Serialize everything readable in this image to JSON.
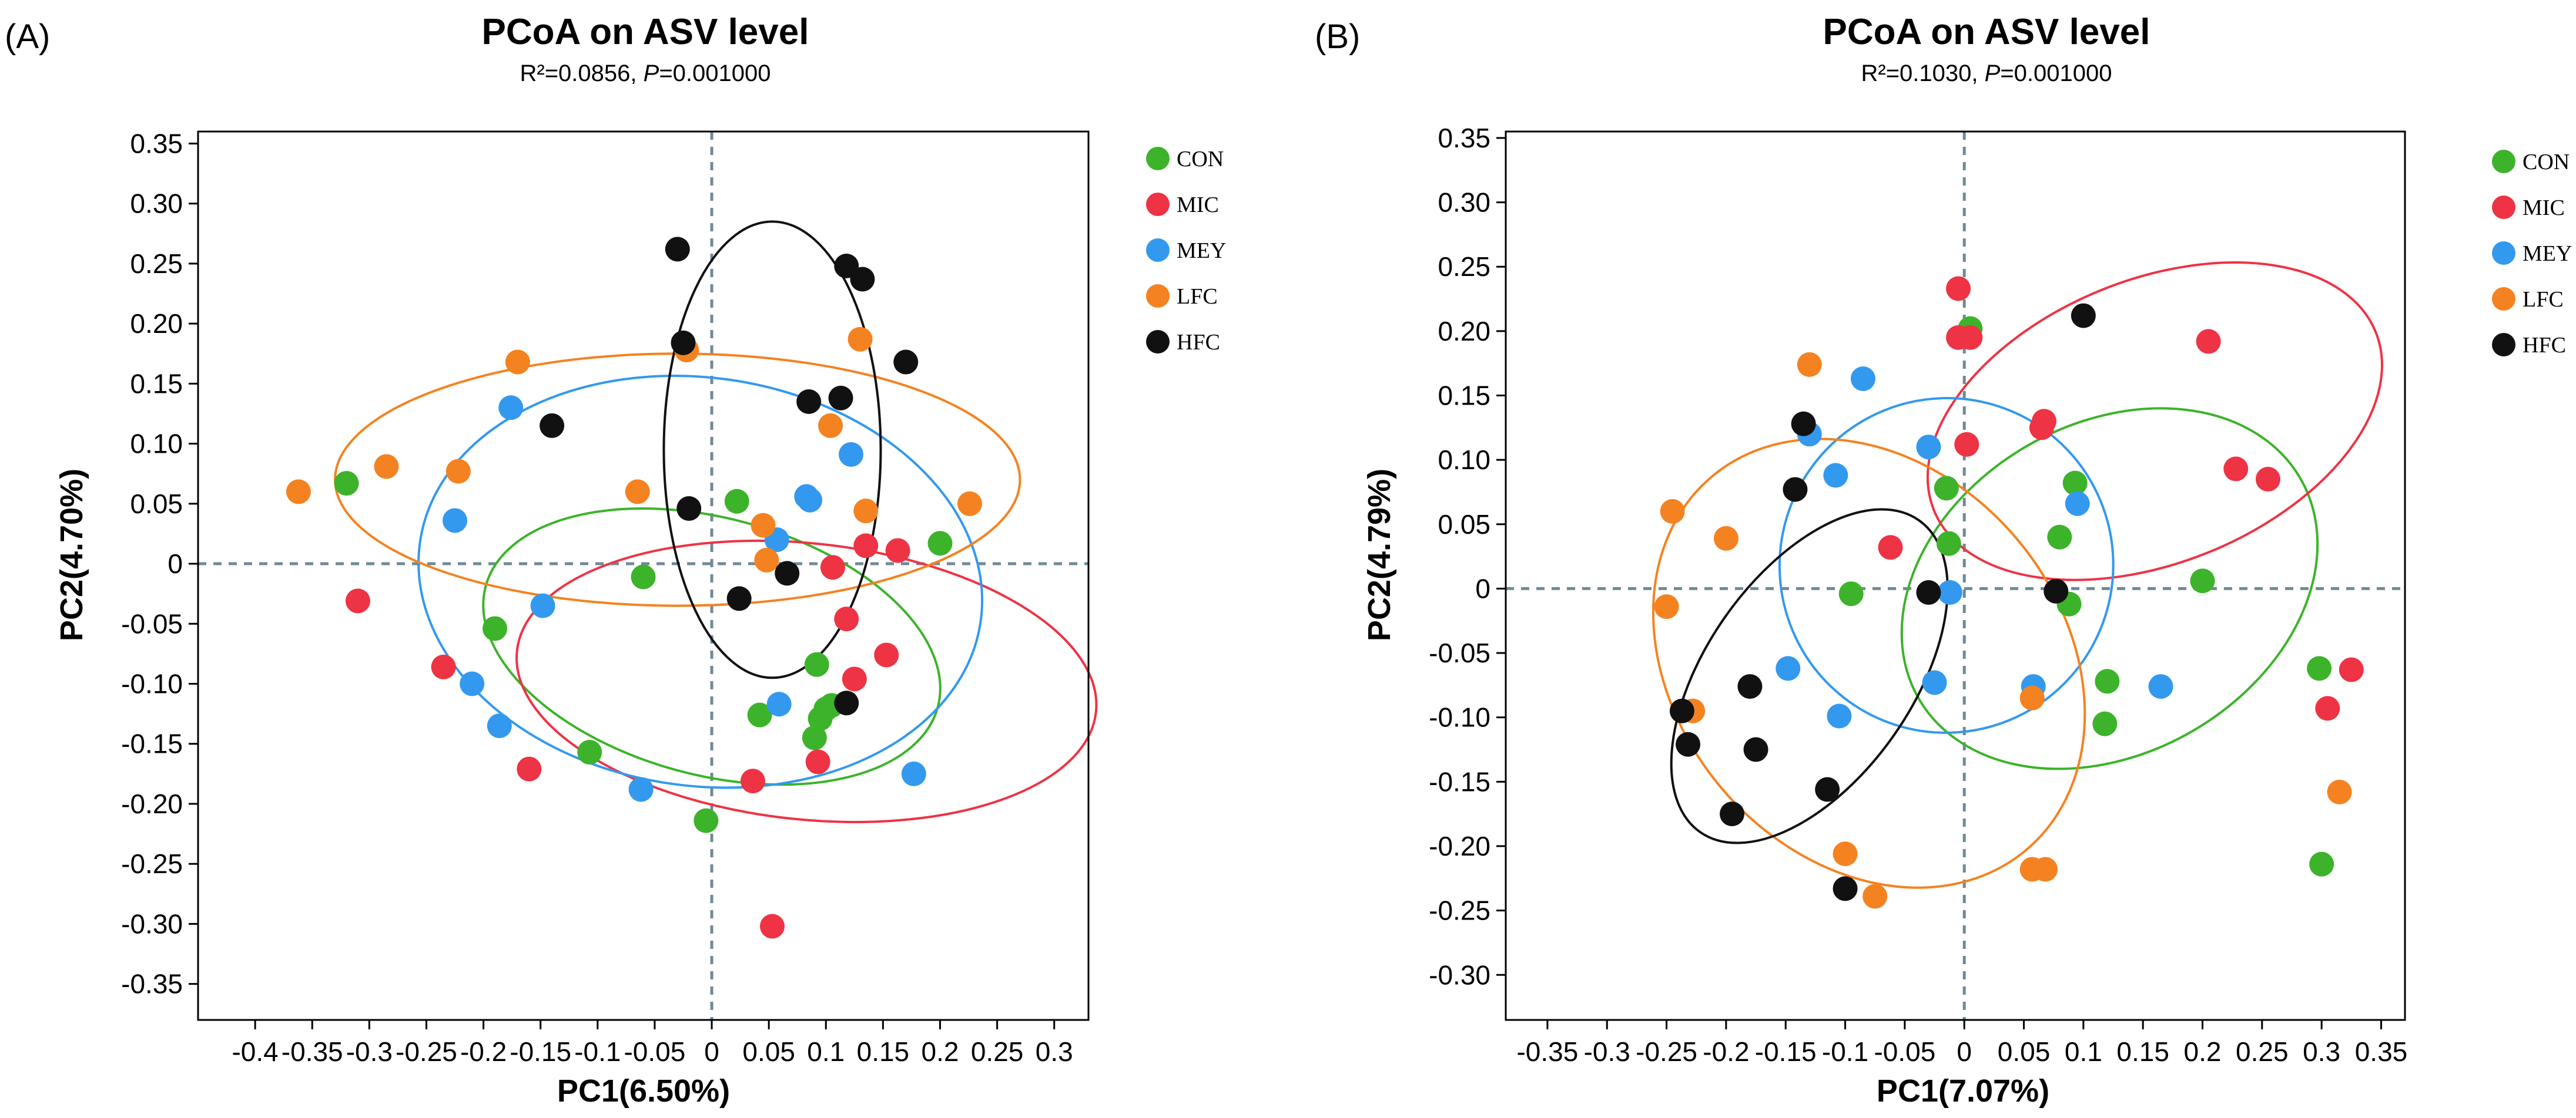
{
  "chart_data": [
    {
      "panel": "(A)",
      "type": "scatter",
      "title": "PCoA on ASV level",
      "subtitle_prefix": "R²=0.0856, ",
      "subtitle_p": "P",
      "subtitle_suffix": "=0.001000",
      "xlabel": "PC1(6.50%)",
      "ylabel": "PC2(4.70%)",
      "xlim": [
        -0.45,
        0.33
      ],
      "ylim": [
        -0.38,
        0.36
      ],
      "x_ticks": [
        -0.4,
        -0.35,
        -0.3,
        -0.25,
        -0.2,
        -0.15,
        -0.1,
        -0.05,
        0,
        0.05,
        0.1,
        0.15,
        0.2,
        0.25,
        0.3
      ],
      "x_tick_labels": [
        "-0.4",
        "-0.35",
        "-0.3",
        "-0.25",
        "-0.2",
        "-0.15",
        "-0.1",
        "-0.05",
        "0",
        "0.05",
        "0.1",
        "0.15",
        "0.2",
        "0.25",
        "0.3"
      ],
      "y_ticks": [
        0.35,
        0.3,
        0.25,
        0.2,
        0.15,
        0.1,
        0.05,
        0,
        -0.05,
        -0.1,
        -0.15,
        -0.2,
        -0.25,
        -0.3,
        -0.35
      ],
      "y_tick_labels": [
        "0.35",
        "0.30",
        "0.25",
        "0.20",
        "0.15",
        "0.10",
        "0.05",
        "0",
        "-0.05",
        "-0.10",
        "-0.15",
        "-0.20",
        "-0.25",
        "-0.30",
        "-0.35"
      ],
      "legend": [
        "CON",
        "MIC",
        "MEY",
        "LFC",
        "HFC"
      ],
      "series": [
        {
          "name": "CON",
          "color": "#3cb32a",
          "points": [
            [
              -0.32,
              0.067
            ],
            [
              -0.19,
              -0.054
            ],
            [
              -0.107,
              -0.157
            ],
            [
              -0.06,
              -0.011
            ],
            [
              -0.005,
              -0.214
            ],
            [
              0.022,
              0.052
            ],
            [
              0.042,
              -0.126
            ],
            [
              0.092,
              -0.084
            ],
            [
              0.095,
              -0.129
            ],
            [
              0.1,
              -0.121
            ],
            [
              0.105,
              -0.118
            ],
            [
              0.2,
              0.017
            ],
            [
              0.09,
              -0.145
            ]
          ],
          "ellipse": {
            "cx": 0.0,
            "cy": -0.069,
            "rx": 0.205,
            "ry": 0.107,
            "angle_deg": -15
          }
        },
        {
          "name": "MIC",
          "color": "#ee3344",
          "points": [
            [
              -0.31,
              -0.031
            ],
            [
              -0.235,
              -0.086
            ],
            [
              -0.16,
              -0.171
            ],
            [
              0.036,
              -0.181
            ],
            [
              0.053,
              -0.302
            ],
            [
              0.093,
              -0.165
            ],
            [
              0.106,
              -0.003
            ],
            [
              0.118,
              -0.046
            ],
            [
              0.125,
              -0.096
            ],
            [
              0.135,
              0.015
            ],
            [
              0.153,
              -0.076
            ],
            [
              0.163,
              0.011
            ]
          ],
          "ellipse": {
            "cx": 0.083,
            "cy": -0.098,
            "rx": 0.255,
            "ry": 0.115,
            "angle_deg": -6
          }
        },
        {
          "name": "MEY",
          "color": "#3399ee",
          "points": [
            [
              -0.225,
              0.036
            ],
            [
              -0.21,
              -0.1
            ],
            [
              -0.186,
              -0.135
            ],
            [
              -0.176,
              0.13
            ],
            [
              -0.148,
              -0.035
            ],
            [
              -0.062,
              -0.188
            ],
            [
              0.057,
              0.02
            ],
            [
              0.059,
              -0.117
            ],
            [
              0.083,
              0.056
            ],
            [
              0.086,
              0.053
            ],
            [
              0.122,
              0.091
            ],
            [
              0.177,
              -0.175
            ]
          ],
          "ellipse": {
            "cx": -0.01,
            "cy": -0.015,
            "rx": 0.248,
            "ry": 0.17,
            "angle_deg": -8
          }
        },
        {
          "name": "LFC",
          "color": "#f58220",
          "points": [
            [
              -0.362,
              0.06
            ],
            [
              -0.285,
              0.081
            ],
            [
              -0.222,
              0.077
            ],
            [
              -0.17,
              0.168
            ],
            [
              -0.065,
              0.06
            ],
            [
              -0.022,
              0.178
            ],
            [
              0.045,
              0.032
            ],
            [
              0.048,
              0.003
            ],
            [
              0.104,
              0.115
            ],
            [
              0.13,
              0.187
            ],
            [
              0.135,
              0.044
            ],
            [
              0.226,
              0.05
            ]
          ],
          "ellipse": {
            "cx": -0.03,
            "cy": 0.07,
            "rx": 0.3,
            "ry": 0.105,
            "angle_deg": 0
          }
        },
        {
          "name": "HFC",
          "color": "#111111",
          "points": [
            [
              -0.03,
              0.262
            ],
            [
              -0.025,
              0.184
            ],
            [
              -0.02,
              0.046
            ],
            [
              -0.14,
              0.115
            ],
            [
              0.024,
              -0.029
            ],
            [
              0.066,
              -0.008
            ],
            [
              0.085,
              0.135
            ],
            [
              0.113,
              0.138
            ],
            [
              0.118,
              0.248
            ],
            [
              0.132,
              0.237
            ],
            [
              0.17,
              0.168
            ],
            [
              0.118,
              -0.116
            ]
          ],
          "ellipse": {
            "cx": 0.053,
            "cy": 0.095,
            "rx": 0.095,
            "ry": 0.19,
            "angle_deg": 0
          }
        }
      ]
    },
    {
      "panel": "(B)",
      "type": "scatter",
      "title": "PCoA on ASV level",
      "subtitle_prefix": "R²=0.1030, ",
      "subtitle_p": "P",
      "subtitle_suffix": "=0.001000",
      "xlabel": "PC1(7.07%)",
      "ylabel": "PC2(4.79%)",
      "xlim": [
        -0.385,
        0.37
      ],
      "ylim": [
        -0.335,
        0.355
      ],
      "x_ticks": [
        -0.35,
        -0.3,
        -0.25,
        -0.2,
        -0.15,
        -0.1,
        -0.05,
        0,
        0.05,
        0.1,
        0.15,
        0.2,
        0.25,
        0.3,
        0.35
      ],
      "x_tick_labels": [
        "-0.35",
        "-0.3",
        "-0.25",
        "-0.2",
        "-0.15",
        "-0.1",
        "-0.05",
        "0",
        "0.05",
        "0.1",
        "0.15",
        "0.2",
        "0.25",
        "0.3",
        "0.35"
      ],
      "y_ticks": [
        0.35,
        0.3,
        0.25,
        0.2,
        0.15,
        0.1,
        0.05,
        0,
        -0.05,
        -0.1,
        -0.15,
        -0.2,
        -0.25,
        -0.3
      ],
      "y_tick_labels": [
        "0.35",
        "0.30",
        "0.25",
        "0.20",
        "0.15",
        "0.10",
        "0.05",
        "0",
        "-0.05",
        "-0.10",
        "-0.15",
        "-0.20",
        "-0.25",
        "-0.30"
      ],
      "legend": [
        "CON",
        "MIC",
        "MEY",
        "LFC",
        "HFC"
      ],
      "series": [
        {
          "name": "CON",
          "color": "#3cb32a",
          "points": [
            [
              0.005,
              0.202
            ],
            [
              -0.015,
              0.078
            ],
            [
              -0.013,
              0.035
            ],
            [
              -0.095,
              -0.004
            ],
            [
              0.08,
              0.04
            ],
            [
              0.088,
              -0.012
            ],
            [
              0.093,
              0.082
            ],
            [
              0.12,
              -0.072
            ],
            [
              0.118,
              -0.105
            ],
            [
              0.2,
              0.006
            ],
            [
              0.298,
              -0.062
            ],
            [
              0.3,
              -0.214
            ]
          ],
          "ellipse": {
            "cx": 0.122,
            "cy": 0.0,
            "rx": 0.185,
            "ry": 0.128,
            "angle_deg": 30
          }
        },
        {
          "name": "MIC",
          "color": "#ee3344",
          "points": [
            [
              -0.005,
              0.233
            ],
            [
              -0.005,
              0.195
            ],
            [
              0.005,
              0.195
            ],
            [
              0.002,
              0.112
            ],
            [
              -0.062,
              0.032
            ],
            [
              0.065,
              0.125
            ],
            [
              0.067,
              0.13
            ],
            [
              0.205,
              0.192
            ],
            [
              0.228,
              0.093
            ],
            [
              0.255,
              0.085
            ],
            [
              0.305,
              -0.093
            ],
            [
              0.325,
              -0.063
            ]
          ],
          "ellipse": {
            "cx": 0.16,
            "cy": 0.13,
            "rx": 0.2,
            "ry": 0.11,
            "angle_deg": 22
          }
        },
        {
          "name": "MEY",
          "color": "#3399ee",
          "points": [
            [
              -0.13,
              0.12
            ],
            [
              -0.108,
              0.088
            ],
            [
              -0.085,
              0.163
            ],
            [
              -0.03,
              0.11
            ],
            [
              -0.012,
              -0.003
            ],
            [
              0.095,
              0.066
            ],
            [
              -0.025,
              -0.073
            ],
            [
              -0.105,
              -0.099
            ],
            [
              -0.148,
              -0.062
            ],
            [
              0.058,
              -0.076
            ],
            [
              0.165,
              -0.076
            ]
          ],
          "ellipse": {
            "cx": -0.015,
            "cy": 0.018,
            "rx": 0.14,
            "ry": 0.13,
            "angle_deg": -20
          }
        },
        {
          "name": "LFC",
          "color": "#f58220",
          "points": [
            [
              -0.13,
              0.174
            ],
            [
              -0.245,
              0.06
            ],
            [
              -0.25,
              -0.014
            ],
            [
              -0.2,
              0.039
            ],
            [
              -0.228,
              -0.095
            ],
            [
              0.057,
              -0.085
            ],
            [
              -0.1,
              -0.206
            ],
            [
              -0.075,
              -0.239
            ],
            [
              0.057,
              -0.218
            ],
            [
              0.068,
              -0.218
            ],
            [
              0.315,
              -0.158
            ]
          ],
          "ellipse": {
            "cx": -0.08,
            "cy": -0.058,
            "rx": 0.205,
            "ry": 0.15,
            "angle_deg": -50
          }
        },
        {
          "name": "HFC",
          "color": "#111111",
          "points": [
            [
              -0.135,
              0.128
            ],
            [
              -0.142,
              0.077
            ],
            [
              -0.03,
              -0.003
            ],
            [
              0.077,
              -0.002
            ],
            [
              0.1,
              0.212
            ],
            [
              -0.237,
              -0.095
            ],
            [
              -0.232,
              -0.121
            ],
            [
              -0.18,
              -0.076
            ],
            [
              -0.175,
              -0.125
            ],
            [
              -0.115,
              -0.156
            ],
            [
              -0.195,
              -0.175
            ],
            [
              -0.1,
              -0.233
            ]
          ],
          "ellipse": {
            "cx": -0.13,
            "cy": -0.068,
            "rx": 0.16,
            "ry": 0.08,
            "angle_deg": 55
          }
        }
      ]
    }
  ]
}
